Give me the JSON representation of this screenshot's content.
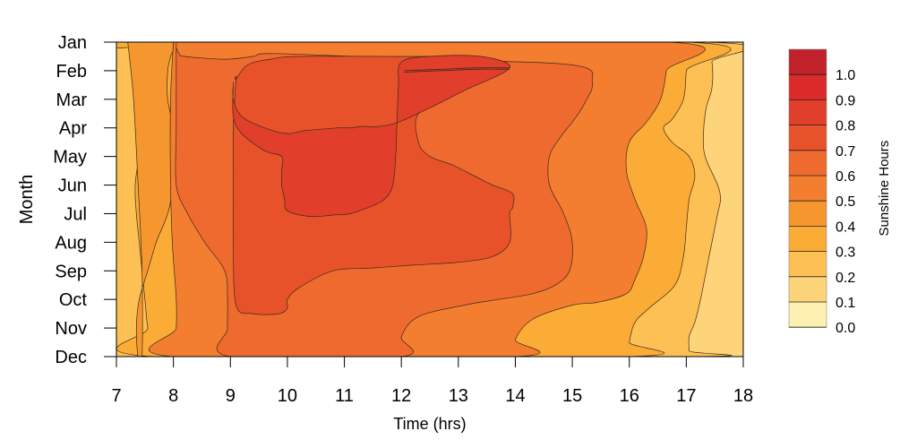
{
  "chart_data": {
    "type": "contour",
    "xlabel": "Time (hrs)",
    "ylabel": "Month",
    "x_ticks": [
      7,
      8,
      9,
      10,
      11,
      12,
      13,
      14,
      15,
      16,
      17,
      18
    ],
    "y_categories": [
      "Jan",
      "Feb",
      "Mar",
      "Apr",
      "May",
      "Jun",
      "Jul",
      "Aug",
      "Sep",
      "Oct",
      "Nov",
      "Dec"
    ],
    "xlim": [
      7,
      18
    ],
    "legend": {
      "title": "Sunshine Hours",
      "position": "right",
      "levels": [
        "1.0",
        "0.9",
        "0.8",
        "0.7",
        "0.6",
        "0.5",
        "0.4",
        "0.3",
        "0.2",
        "0.1",
        "0.0"
      ],
      "colors": [
        "#c0212b",
        "#db2a2a",
        "#e13e2b",
        "#e8522a",
        "#ef6a2f",
        "#f37e30",
        "#f6962f",
        "#fbac36",
        "#fdc055",
        "#fed47a",
        "#fef0b0"
      ]
    },
    "regions": [
      {
        "level": 0.0,
        "color": "#fed47a",
        "x": [
          7,
          18,
          18,
          7
        ],
        "month": [
          1,
          1,
          12,
          12
        ]
      },
      {
        "level": 0.1,
        "color": "#fdc055",
        "x": [
          7,
          17.35,
          17.45,
          17.45,
          17.35,
          17.3,
          17.33,
          17.55,
          17.6,
          17.55,
          17.45,
          17.35,
          17.25,
          17.15,
          17.05,
          17.05,
          17.05,
          7
        ],
        "month": [
          1,
          1,
          1.7,
          2.6,
          3.3,
          4.2,
          5,
          6,
          6.5,
          7,
          8,
          9,
          10,
          10.8,
          11.3,
          11.8,
          12,
          12
        ]
      },
      {
        "level": 0.2,
        "color": "#fbac36",
        "x": [
          7,
          17.05,
          17,
          16.95,
          16.75,
          16.6,
          16.75,
          17.05,
          17.15,
          17.05,
          17,
          16.95,
          16.8,
          16.35,
          16.1,
          16,
          16,
          7.65,
          7.55,
          7.5,
          7.45,
          7.4,
          7.35,
          7.33,
          7.4,
          7.5,
          7.6,
          7.55,
          7.35,
          7.3,
          7
        ],
        "month": [
          1,
          1,
          2,
          3,
          3.7,
          4,
          4.5,
          5,
          5.7,
          6.5,
          7.5,
          8.5,
          9.5,
          10.3,
          10.8,
          11.5,
          12,
          12,
          11,
          10,
          9,
          8,
          7,
          6,
          5,
          4,
          3,
          2,
          1.5,
          1.2,
          1.2
        ]
      },
      {
        "level": 0.3,
        "color": "#f6962f",
        "x": [
          7.2,
          8,
          7.95,
          7.9,
          7.9,
          8,
          8.05,
          8,
          7.9,
          7.7,
          7.55,
          7.4,
          7.35,
          7.38,
          7.45,
          7.45,
          7.38,
          7.3,
          7.2
        ],
        "month": [
          1,
          1,
          1.5,
          2,
          3,
          4,
          5,
          6,
          7,
          8,
          9,
          10,
          11,
          12,
          12,
          9,
          6,
          3,
          1
        ]
      },
      {
        "level": 0.4,
        "color": "#f37e30",
        "x": [
          8,
          16.7,
          16.65,
          16.55,
          16.3,
          16,
          15.95,
          16.1,
          16.3,
          16.25,
          16.1,
          15.95,
          15.45,
          15,
          14.3,
          14,
          14,
          8,
          8.05,
          8.05,
          7.98,
          7.95,
          7.95,
          8
        ],
        "month": [
          1,
          1,
          2,
          3,
          3.8,
          4.5,
          5.5,
          6.5,
          7.5,
          8.5,
          9.3,
          9.8,
          10.1,
          10.2,
          10.7,
          11.4,
          12,
          12,
          11,
          10,
          8,
          6,
          3,
          1
        ]
      },
      {
        "level": 0.5,
        "color": "#ef6a2f",
        "x": [
          8.05,
          8.05,
          8.1,
          8.2,
          8.9,
          9.4,
          9.8,
          12.3,
          15,
          15.35,
          15.2,
          15,
          14.8,
          14.6,
          14.6,
          14.85,
          15,
          14.95,
          14.7,
          14.3,
          13.7,
          13.1,
          12.3,
          12,
          12,
          9,
          8.95,
          8.95,
          8.9,
          8.55,
          8.25,
          8.05,
          8.05,
          8.05
        ],
        "month": [
          1.2,
          1.2,
          1.4,
          1.5,
          1.6,
          1.5,
          1.4,
          1.6,
          1.8,
          2.4,
          3.2,
          3.8,
          4.3,
          5,
          6,
          7,
          8,
          9,
          9.5,
          9.8,
          10,
          10.2,
          10.6,
          11.3,
          12,
          12,
          11,
          10,
          9,
          8,
          7,
          6,
          4,
          1.2
        ]
      },
      {
        "level": 0.6,
        "color": "#e8522a",
        "x": [
          9.1,
          9.3,
          9.7,
          10.2,
          11.9,
          12.5,
          13,
          13.4,
          13.7,
          13.4,
          12.9,
          12.3,
          12.3,
          12.5,
          12.9,
          13.3,
          13.6,
          13.95,
          13.95,
          13.9,
          13.9,
          13.6,
          13,
          12.2,
          11.5,
          10.8,
          10.2,
          10,
          10,
          9.85,
          9.4,
          9.1,
          9.05,
          9.05,
          9.05,
          9.1
        ],
        "month": [
          2.3,
          1.8,
          1.6,
          1.5,
          1.5,
          1.5,
          1.5,
          1.7,
          2,
          2.3,
          2.8,
          3.5,
          4.5,
          5,
          5.3,
          5.7,
          6,
          6.3,
          6.8,
          7,
          8,
          8.5,
          8.7,
          8.8,
          8.9,
          9,
          9.6,
          10,
          10.3,
          10.5,
          10.5,
          10.2,
          8,
          6,
          4,
          2.3
        ]
      },
      {
        "level": 0.7,
        "color": "#e13e2b",
        "x": [
          9.05,
          9.05,
          9.2,
          9.6,
          10,
          10.3,
          10.9,
          11.1,
          11.3,
          11.6,
          11.95,
          12.5,
          13.1,
          13.9,
          13.4,
          12.5,
          12,
          11.95,
          11.92,
          11.9,
          11.85,
          11.7,
          11.4,
          11.1,
          10.8,
          10.4,
          10,
          9.95,
          9.9,
          9.9,
          9.9,
          9.6,
          9.2,
          9.05,
          9.05
        ],
        "month": [
          2.5,
          3,
          3.6,
          4,
          4.2,
          4.1,
          4,
          4,
          3.95,
          3.95,
          3.8,
          3.3,
          2.7,
          1.9,
          1.5,
          1.5,
          1.7,
          2.5,
          4,
          5,
          6,
          6.5,
          6.8,
          7,
          7.05,
          7.1,
          6.9,
          6.5,
          6,
          5.5,
          5,
          4.8,
          4.2,
          3.6,
          2.5
        ]
      }
    ],
    "contour_lines": [
      [
        [
          12.05,
          2
        ],
        [
          12.7,
          1.95
        ],
        [
          13.3,
          1.9
        ],
        [
          13.7,
          1.9
        ],
        [
          13.9,
          1.9
        ]
      ],
      [
        [
          12.05,
          2.05
        ],
        [
          12.7,
          2
        ],
        [
          13.3,
          1.95
        ],
        [
          13.7,
          1.95
        ],
        [
          13.9,
          1.95
        ]
      ]
    ]
  }
}
